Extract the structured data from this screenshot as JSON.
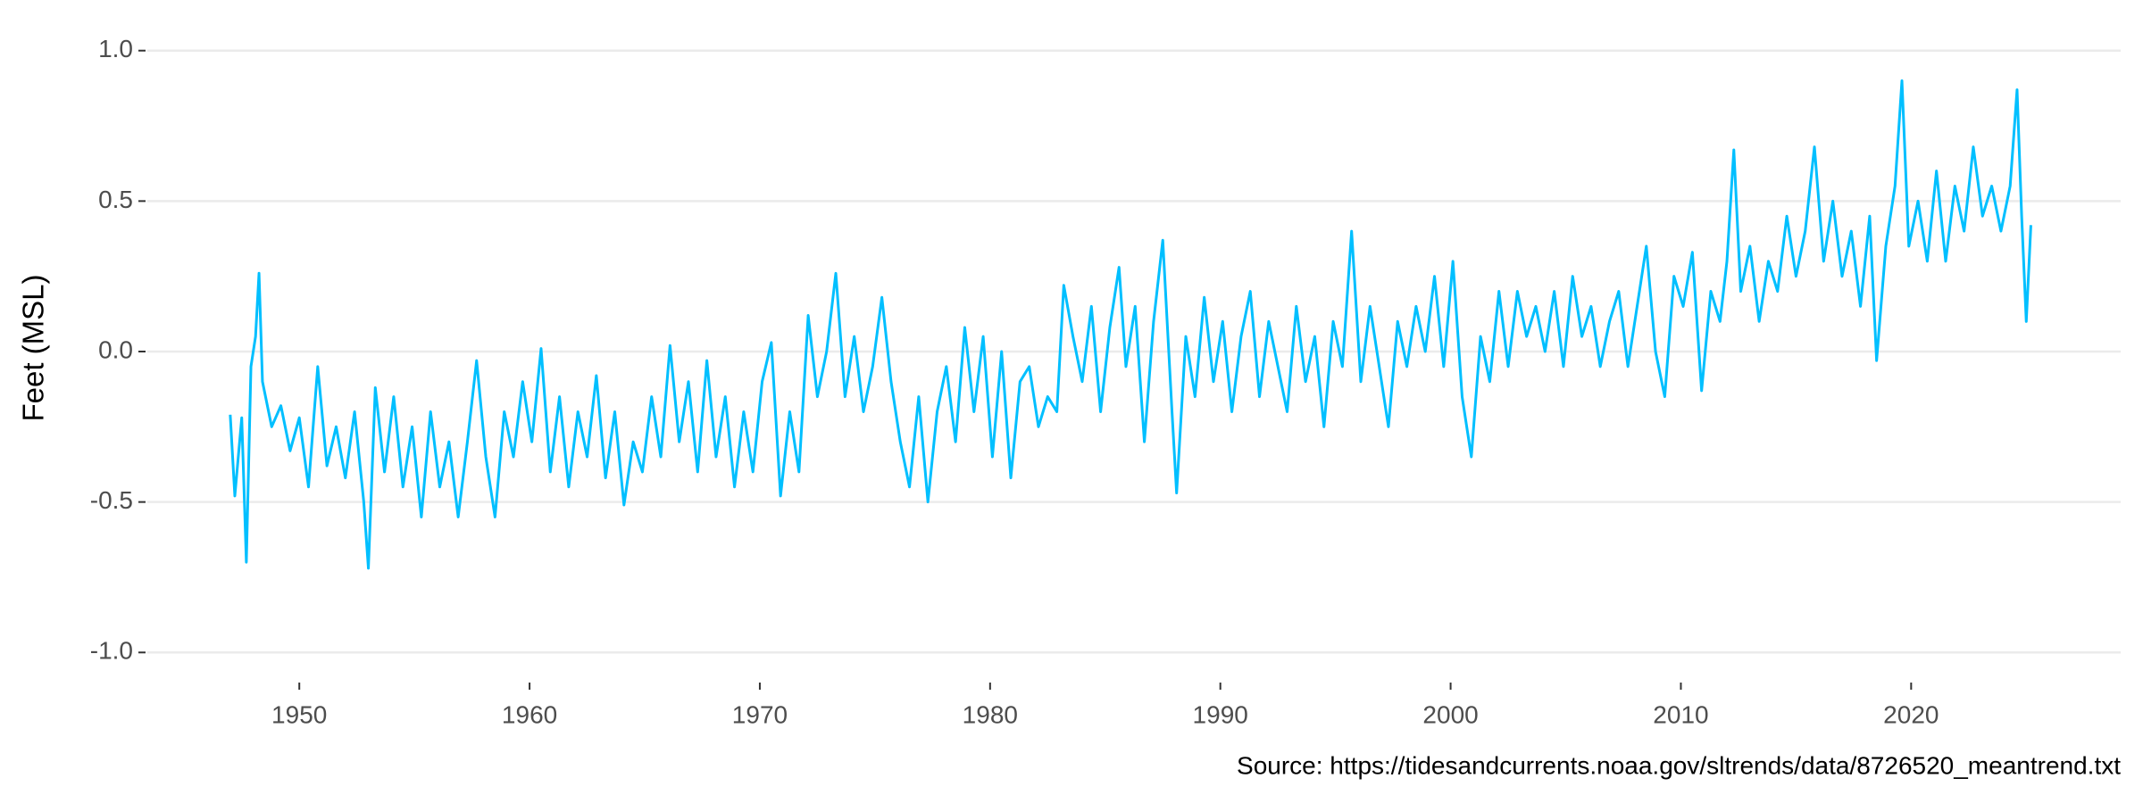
{
  "chart_data": {
    "type": "line",
    "y_label": "Feet (MSL)",
    "caption": "Source: https://tidesandcurrents.noaa.gov/sltrends/data/8726520_meantrend.txt",
    "xlim": [
      1943.4,
      2029.1
    ],
    "xticks": [
      1950,
      1960,
      1970,
      1980,
      1990,
      2000,
      2010,
      2020
    ],
    "ylim": [
      -1.1,
      1.1
    ],
    "yticks": [
      {
        "value": -1,
        "label": "-1.0"
      },
      -0.5,
      {
        "value": 0,
        "label": "0.0"
      },
      0.5,
      {
        "value": 1,
        "label": "1.0"
      }
    ],
    "grid": true,
    "series": [
      {
        "color": "#00bfff",
        "x": [
          1947.0,
          1947.2,
          1947.5,
          1947.7,
          1947.9,
          1948.1,
          1948.25,
          1948.4,
          1948.8,
          1949.2,
          1949.6,
          1950.0,
          1950.4,
          1950.8,
          1951.2,
          1951.6,
          1952.0,
          1952.4,
          1952.8,
          1953.0,
          1953.3,
          1953.7,
          1954.1,
          1954.5,
          1954.9,
          1955.3,
          1955.7,
          1956.1,
          1956.5,
          1956.9,
          1957.3,
          1957.7,
          1958.1,
          1958.5,
          1958.9,
          1959.3,
          1959.7,
          1960.1,
          1960.5,
          1960.9,
          1961.3,
          1961.7,
          1962.1,
          1962.5,
          1962.9,
          1963.3,
          1963.7,
          1964.1,
          1964.5,
          1964.9,
          1965.3,
          1965.7,
          1966.1,
          1966.5,
          1966.9,
          1967.3,
          1967.7,
          1968.1,
          1968.5,
          1968.9,
          1969.3,
          1969.7,
          1970.1,
          1970.5,
          1970.9,
          1971.3,
          1971.7,
          1972.1,
          1972.5,
          1972.9,
          1973.3,
          1973.7,
          1974.1,
          1974.5,
          1974.9,
          1975.3,
          1975.7,
          1976.1,
          1976.5,
          1976.9,
          1977.3,
          1977.7,
          1978.1,
          1978.5,
          1978.9,
          1979.3,
          1979.7,
          1980.1,
          1980.5,
          1980.9,
          1981.3,
          1981.7,
          1982.1,
          1982.5,
          1982.9,
          1983.2,
          1983.6,
          1984.0,
          1984.4,
          1984.8,
          1985.2,
          1985.6,
          1985.9,
          1986.3,
          1986.7,
          1987.1,
          1987.5,
          1987.9,
          1988.1,
          1988.5,
          1988.9,
          1989.3,
          1989.7,
          1990.1,
          1990.5,
          1990.9,
          1991.3,
          1991.7,
          1992.1,
          1992.5,
          1992.9,
          1993.3,
          1993.7,
          1994.1,
          1994.5,
          1994.9,
          1995.3,
          1995.7,
          1996.1,
          1996.5,
          1996.9,
          1997.3,
          1997.7,
          1998.1,
          1998.5,
          1998.9,
          1999.3,
          1999.7,
          2000.1,
          2000.5,
          2000.9,
          2001.3,
          2001.7,
          2002.1,
          2002.5,
          2002.9,
          2003.3,
          2003.7,
          2004.1,
          2004.5,
          2004.9,
          2005.3,
          2005.7,
          2006.1,
          2006.5,
          2006.9,
          2007.3,
          2007.7,
          2008.1,
          2008.5,
          2008.9,
          2009.3,
          2009.7,
          2010.1,
          2010.5,
          2010.9,
          2011.3,
          2011.7,
          2012.0,
          2012.3,
          2012.6,
          2013.0,
          2013.4,
          2013.8,
          2014.2,
          2014.6,
          2015.0,
          2015.4,
          2015.8,
          2016.2,
          2016.6,
          2017.0,
          2017.4,
          2017.8,
          2018.2,
          2018.5,
          2018.9,
          2019.3,
          2019.6,
          2019.9,
          2020.3,
          2020.7,
          2021.1,
          2021.5,
          2021.9,
          2022.3,
          2022.7,
          2023.1,
          2023.5,
          2023.9,
          2024.3,
          2024.6,
          2024.8,
          2025.0,
          2025.2
        ],
        "values": [
          -0.21,
          -0.48,
          -0.22,
          -0.7,
          -0.05,
          0.05,
          0.26,
          -0.1,
          -0.25,
          -0.18,
          -0.33,
          -0.22,
          -0.45,
          -0.05,
          -0.38,
          -0.25,
          -0.42,
          -0.2,
          -0.5,
          -0.72,
          -0.12,
          -0.4,
          -0.15,
          -0.45,
          -0.25,
          -0.55,
          -0.2,
          -0.45,
          -0.3,
          -0.55,
          -0.3,
          -0.03,
          -0.35,
          -0.55,
          -0.2,
          -0.35,
          -0.1,
          -0.3,
          0.01,
          -0.4,
          -0.15,
          -0.45,
          -0.2,
          -0.35,
          -0.08,
          -0.42,
          -0.2,
          -0.51,
          -0.3,
          -0.4,
          -0.15,
          -0.35,
          0.02,
          -0.3,
          -0.1,
          -0.4,
          -0.03,
          -0.35,
          -0.15,
          -0.45,
          -0.2,
          -0.4,
          -0.1,
          0.03,
          -0.48,
          -0.2,
          -0.4,
          0.12,
          -0.15,
          0.0,
          0.26,
          -0.15,
          0.05,
          -0.2,
          -0.05,
          0.18,
          -0.1,
          -0.3,
          -0.45,
          -0.15,
          -0.5,
          -0.2,
          -0.05,
          -0.3,
          0.08,
          -0.2,
          0.05,
          -0.35,
          0.0,
          -0.42,
          -0.1,
          -0.05,
          -0.25,
          -0.15,
          -0.2,
          0.22,
          0.05,
          -0.1,
          0.15,
          -0.2,
          0.08,
          0.28,
          -0.05,
          0.15,
          -0.3,
          0.1,
          0.37,
          -0.2,
          -0.47,
          0.05,
          -0.15,
          0.18,
          -0.1,
          0.1,
          -0.2,
          0.05,
          0.2,
          -0.15,
          0.1,
          -0.05,
          -0.2,
          0.15,
          -0.1,
          0.05,
          -0.25,
          0.1,
          -0.05,
          0.4,
          -0.1,
          0.15,
          -0.05,
          -0.25,
          0.1,
          -0.05,
          0.15,
          0.0,
          0.25,
          -0.05,
          0.3,
          -0.15,
          -0.35,
          0.05,
          -0.1,
          0.2,
          -0.05,
          0.2,
          0.05,
          0.15,
          0.0,
          0.2,
          -0.05,
          0.25,
          0.05,
          0.15,
          -0.05,
          0.1,
          0.2,
          -0.05,
          0.15,
          0.35,
          0.0,
          -0.15,
          0.25,
          0.15,
          0.33,
          -0.13,
          0.2,
          0.1,
          0.3,
          0.67,
          0.2,
          0.35,
          0.1,
          0.3,
          0.2,
          0.45,
          0.25,
          0.4,
          0.68,
          0.3,
          0.5,
          0.25,
          0.4,
          0.15,
          0.45,
          -0.03,
          0.35,
          0.55,
          0.9,
          0.35,
          0.5,
          0.3,
          0.6,
          0.3,
          0.55,
          0.4,
          0.68,
          0.45,
          0.55,
          0.4,
          0.55,
          0.87,
          0.45,
          0.1,
          0.42
        ]
      }
    ]
  }
}
